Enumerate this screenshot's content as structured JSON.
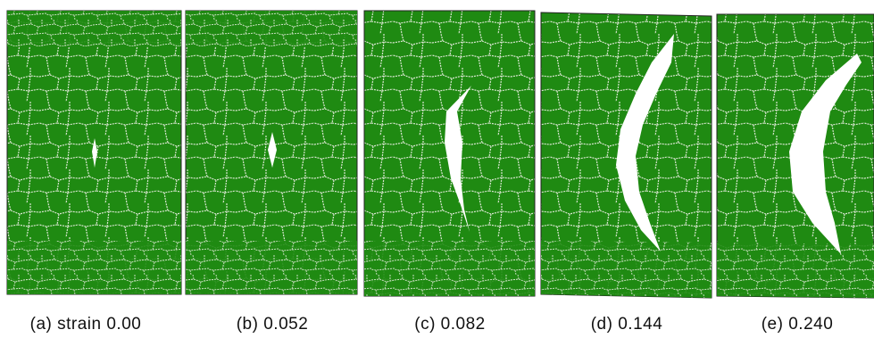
{
  "panels": [
    {
      "caption": "(a)  strain 0.00"
    },
    {
      "caption": "(b) 0.052"
    },
    {
      "caption": "(c) 0.082"
    },
    {
      "caption": "(d) 0.144"
    },
    {
      "caption": "(e) 0.240"
    }
  ]
}
